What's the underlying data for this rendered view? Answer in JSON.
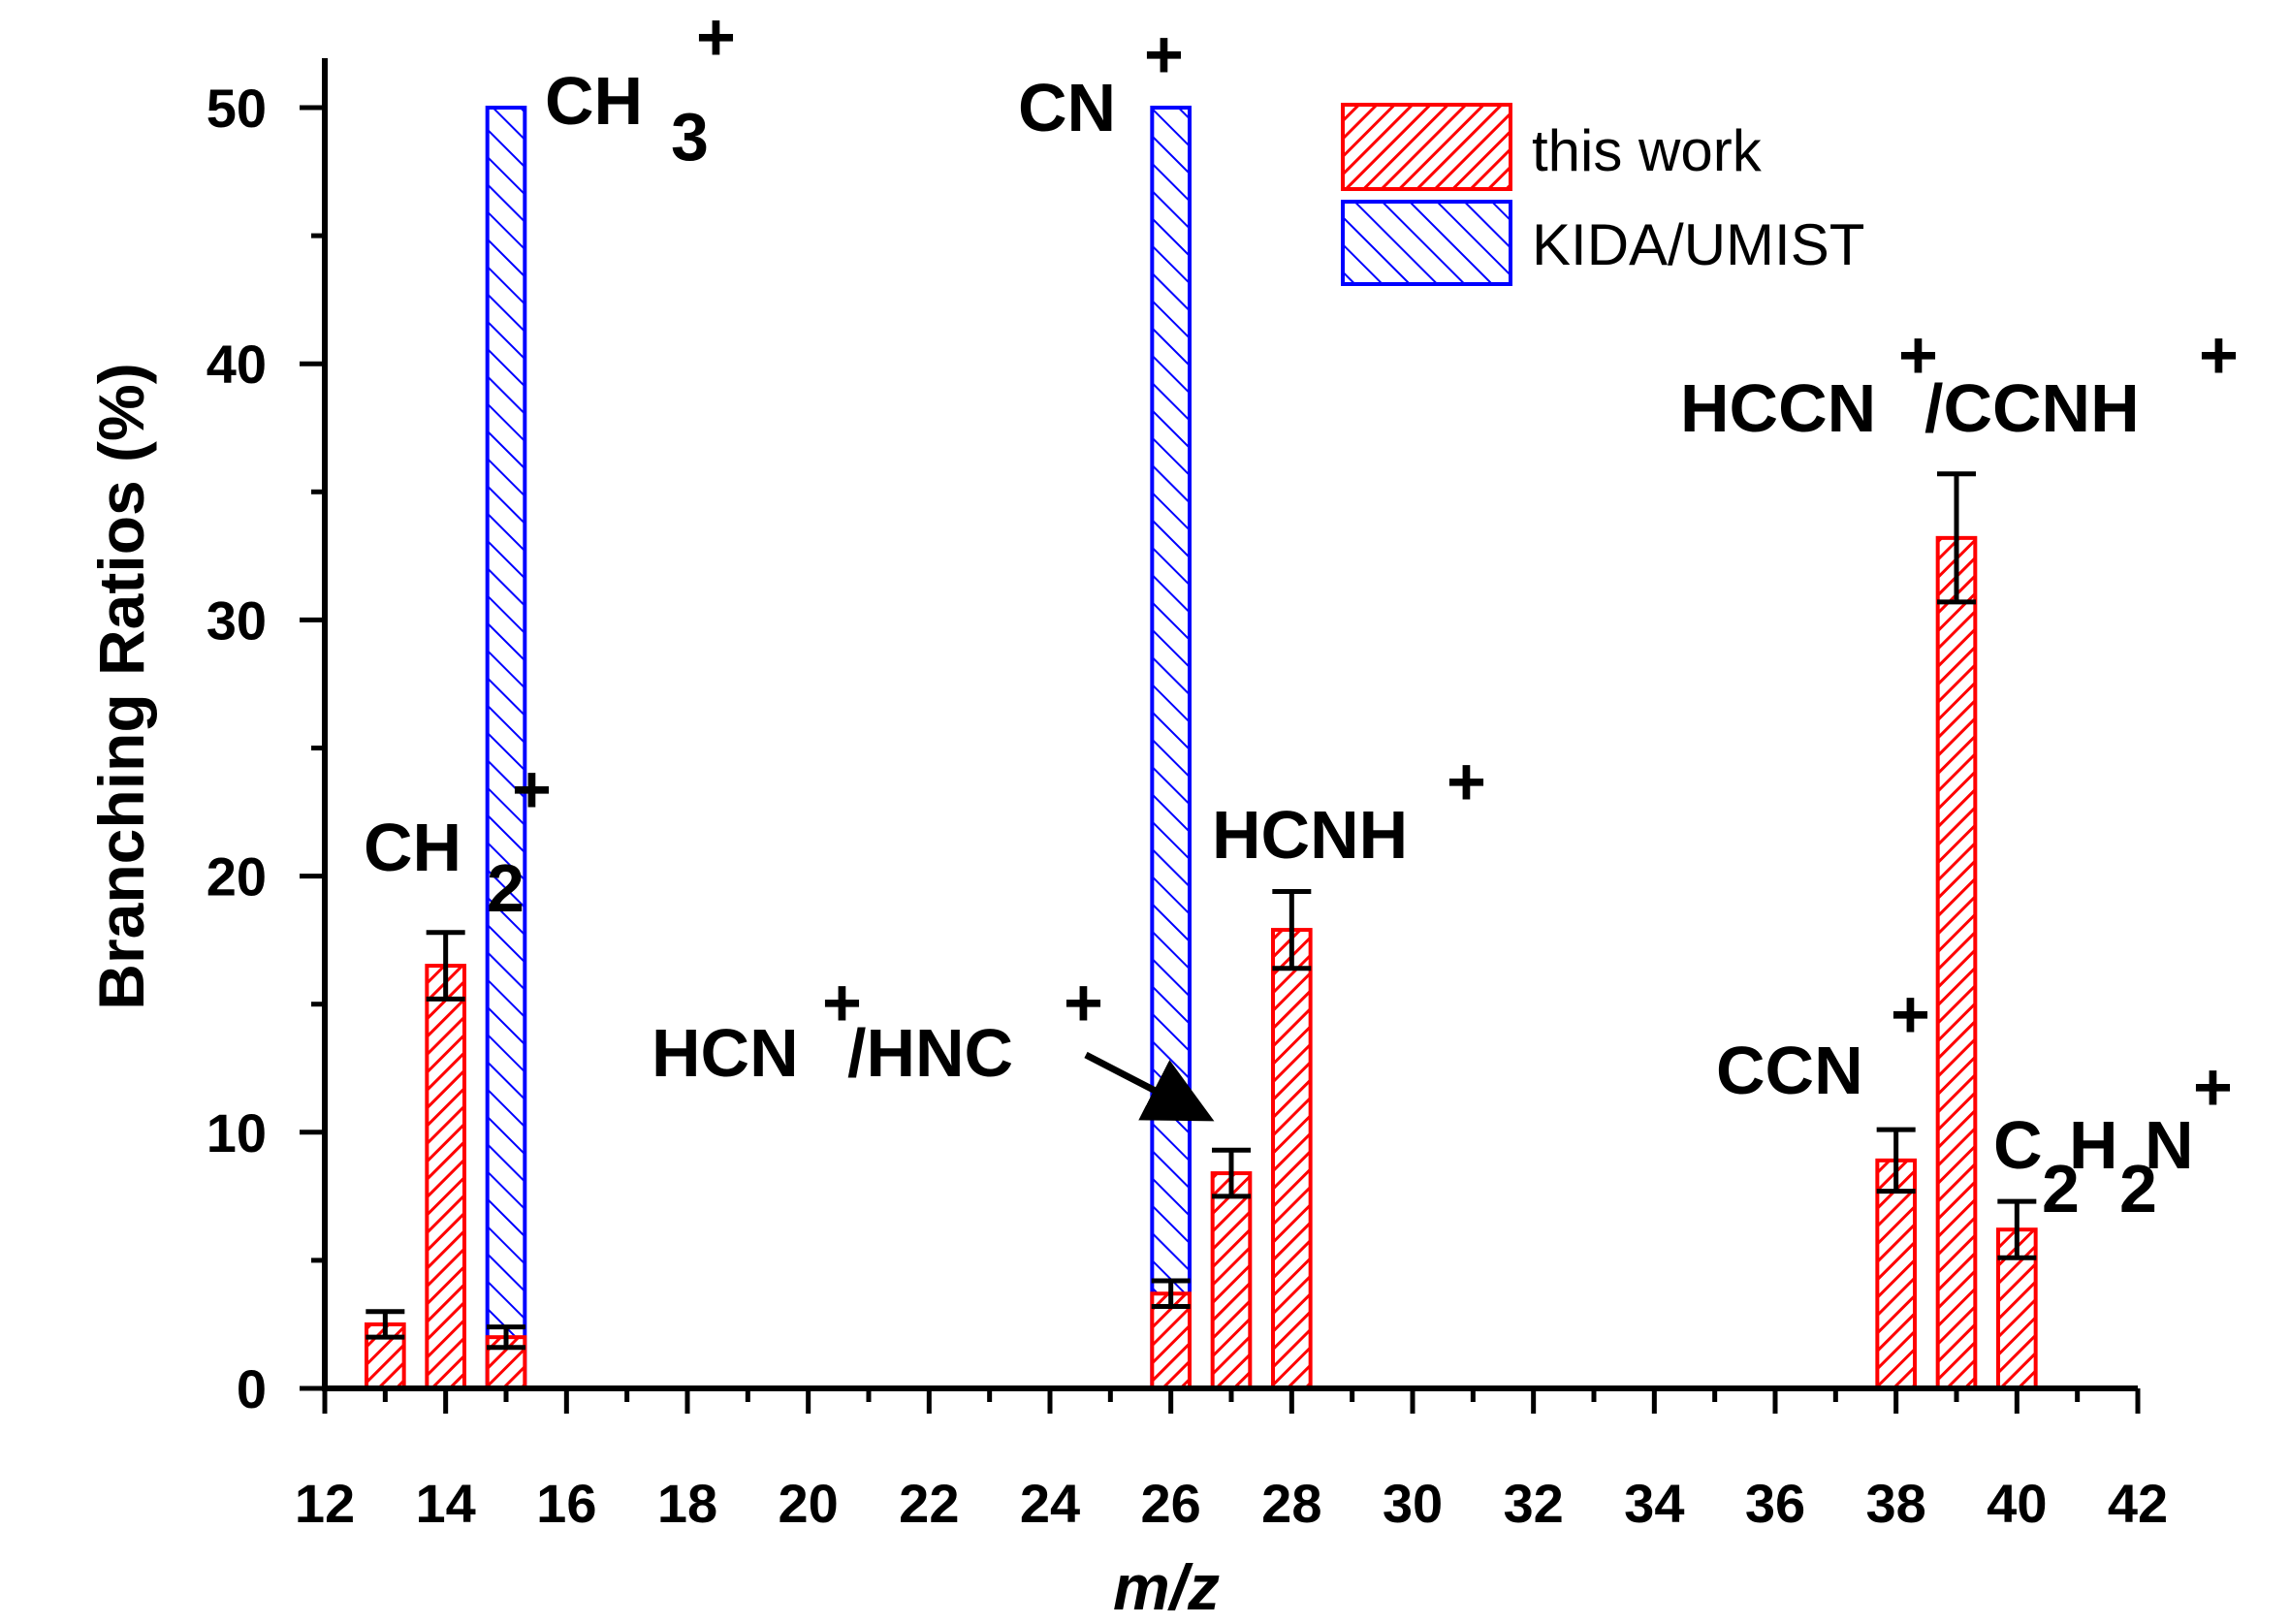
{
  "chart_data": {
    "type": "bar",
    "xlabel": "m/z",
    "ylabel": "Branching Ratios (%)",
    "xlim": [
      12,
      42
    ],
    "ylim": [
      0,
      52
    ],
    "x_ticks": [
      12,
      14,
      16,
      18,
      20,
      22,
      24,
      26,
      28,
      30,
      32,
      34,
      36,
      38,
      40,
      42
    ],
    "y_ticks": [
      0,
      10,
      20,
      30,
      40,
      50
    ],
    "grid": false,
    "legend_position": "top-right",
    "series": [
      {
        "name": "this work",
        "color": "#ff0000",
        "pattern": "hatch-forward",
        "points": [
          {
            "x": 13,
            "y": 2.5,
            "err": 0.5
          },
          {
            "x": 14,
            "y": 16.5,
            "err": 1.3
          },
          {
            "x": 15,
            "y": 2.0,
            "err": 0.4
          },
          {
            "x": 26,
            "y": 3.7,
            "err": 0.5
          },
          {
            "x": 27,
            "y": 8.4,
            "err": 0.9
          },
          {
            "x": 28,
            "y": 17.9,
            "err": 1.5
          },
          {
            "x": 38,
            "y": 8.9,
            "err": 1.2
          },
          {
            "x": 39,
            "y": 33.2,
            "err": 2.5
          },
          {
            "x": 40,
            "y": 6.2,
            "err": 1.1
          }
        ]
      },
      {
        "name": "KIDA/UMIST",
        "color": "#0000ff",
        "pattern": "hatch-back",
        "points": [
          {
            "x": 15,
            "y": 50
          },
          {
            "x": 26,
            "y": 50
          }
        ]
      }
    ],
    "annotations": [
      {
        "text": "CH",
        "sub": "3",
        "sup": "+"
      },
      {
        "text": "CH",
        "sub": "2",
        "sup": "+"
      },
      {
        "text": "CN",
        "sub": "",
        "sup": "+"
      },
      {
        "text": "HCNH",
        "sub": "",
        "sup": "+"
      },
      {
        "text": "HCN+/HNC+",
        "arrow": true
      },
      {
        "text": "HCCN+/CCNH+"
      },
      {
        "text": "CCN",
        "sub": "",
        "sup": "+"
      },
      {
        "text": "C2H2N+"
      }
    ]
  }
}
